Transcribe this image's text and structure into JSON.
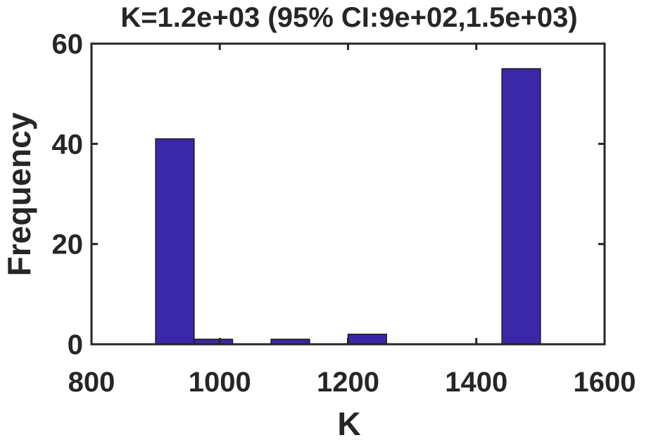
{
  "chart_data": {
    "type": "bar",
    "title": "K=1.2e+03 (95% CI:9e+02,1.5e+03)",
    "xlabel": "K",
    "ylabel": "Frequency",
    "xlim": [
      800,
      1600
    ],
    "ylim": [
      0,
      60
    ],
    "xticks": [
      800,
      1000,
      1200,
      1400,
      1600
    ],
    "yticks": [
      0,
      20,
      40,
      60
    ],
    "grid": false,
    "legend": "none",
    "bar_color": "#3A28A8",
    "bins": [
      {
        "x0": 900,
        "x1": 960,
        "count": 41
      },
      {
        "x0": 960,
        "x1": 1020,
        "count": 1
      },
      {
        "x0": 1020,
        "x1": 1080,
        "count": 0
      },
      {
        "x0": 1080,
        "x1": 1140,
        "count": 1
      },
      {
        "x0": 1140,
        "x1": 1200,
        "count": 0
      },
      {
        "x0": 1200,
        "x1": 1260,
        "count": 2
      },
      {
        "x0": 1260,
        "x1": 1320,
        "count": 0
      },
      {
        "x0": 1320,
        "x1": 1380,
        "count": 0
      },
      {
        "x0": 1380,
        "x1": 1440,
        "count": 0
      },
      {
        "x0": 1440,
        "x1": 1500,
        "count": 55
      }
    ]
  }
}
